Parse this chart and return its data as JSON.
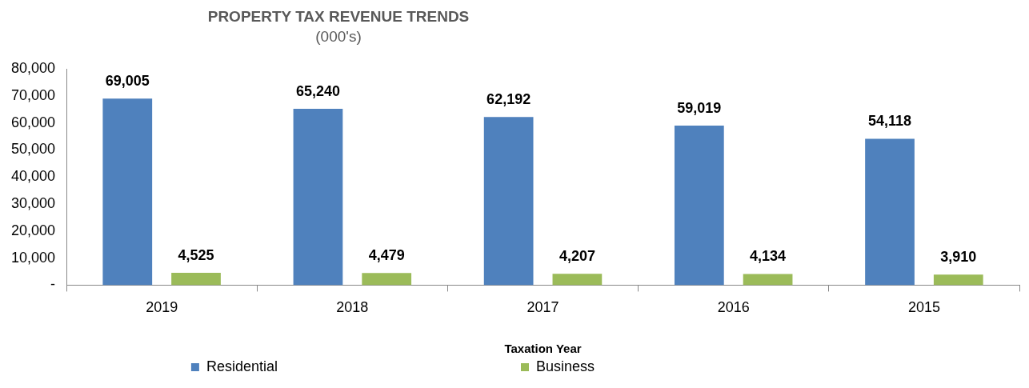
{
  "chart_data": {
    "type": "bar",
    "title": "PROPERTY TAX REVENUE TRENDS",
    "subtitle": "(000's)",
    "xlabel": "Taxation Year",
    "categories": [
      "2019",
      "2018",
      "2017",
      "2016",
      "2015"
    ],
    "series": [
      {
        "name": "Residential",
        "color": "#4f81bd",
        "values": [
          69005,
          65240,
          62192,
          59019,
          54118
        ],
        "value_labels": [
          "69,005",
          "65,240",
          "62,192",
          "59,019",
          "54,118"
        ]
      },
      {
        "name": "Business",
        "color": "#9bbb59",
        "values": [
          4525,
          4479,
          4207,
          4134,
          3910
        ],
        "value_labels": [
          "4,525",
          "4,479",
          "4,207",
          "4,134",
          "3,910"
        ]
      }
    ],
    "ylim": [
      0,
      80000
    ],
    "yticks": [
      {
        "value": 0,
        "label": "-"
      },
      {
        "value": 10000,
        "label": "10,000"
      },
      {
        "value": 20000,
        "label": "20,000"
      },
      {
        "value": 30000,
        "label": "30,000"
      },
      {
        "value": 40000,
        "label": "40,000"
      },
      {
        "value": 50000,
        "label": "50,000"
      },
      {
        "value": 60000,
        "label": "60,000"
      },
      {
        "value": 70000,
        "label": "70,000"
      },
      {
        "value": 80000,
        "label": "80,000"
      }
    ],
    "grid": false,
    "legend": "bottom"
  }
}
